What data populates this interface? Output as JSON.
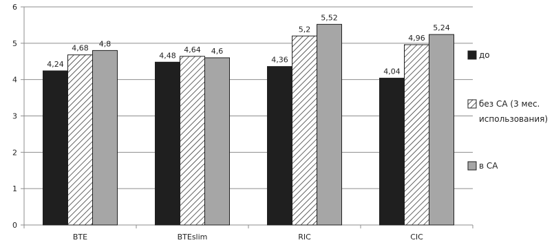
{
  "chart_data": {
    "type": "bar",
    "categories": [
      "BTE",
      "BTEslim",
      "RIC",
      "CIC"
    ],
    "series": [
      {
        "name": "до",
        "values": [
          4.24,
          4.48,
          4.36,
          4.04
        ],
        "labels": [
          "4,24",
          "4,48",
          "4,36",
          "4,04"
        ],
        "fill": "#1f1f1f",
        "pattern": "solid"
      },
      {
        "name": "без СА (3 мес. использования)",
        "legend_lines": [
          "без СА (3 мес.",
          "использования)"
        ],
        "values": [
          4.68,
          4.64,
          5.2,
          4.96
        ],
        "labels": [
          "4,68",
          "4,64",
          "5,2",
          "4,96"
        ],
        "fill": "#ffffff",
        "pattern": "hatch"
      },
      {
        "name": "в СА",
        "values": [
          4.8,
          4.6,
          5.52,
          5.24
        ],
        "labels": [
          "4,8",
          "4,6",
          "5,52",
          "5,24"
        ],
        "fill": "#a6a6a6",
        "pattern": "solid"
      }
    ],
    "ylim": [
      0,
      6
    ],
    "yticks": [
      "0",
      "1",
      "2",
      "3",
      "4",
      "5",
      "6"
    ],
    "grid": true,
    "legend_position": "right",
    "title": "",
    "xlabel": "",
    "ylabel": ""
  }
}
